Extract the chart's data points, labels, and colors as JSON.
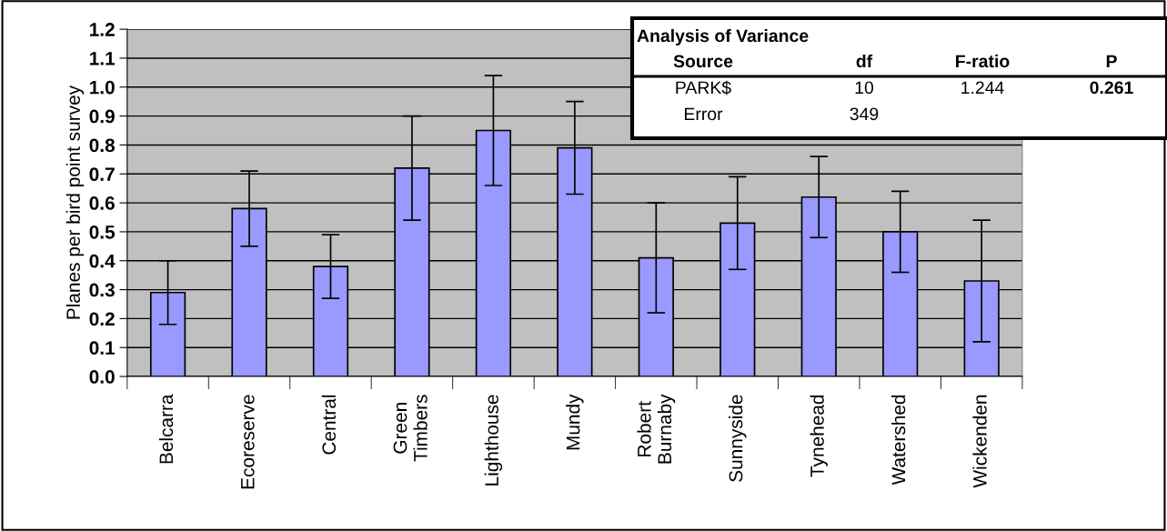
{
  "chart_data": {
    "type": "bar",
    "ylabel": "Planes per bird point survey",
    "categories": [
      "Belcarra",
      "Ecoreserve",
      "Central",
      "Green\nTimbers",
      "Lighthouse",
      "Mundy",
      "Robert\nBurnaby",
      "Sunnyside",
      "Tynehead",
      "Watershed",
      "Wickenden"
    ],
    "values": [
      0.29,
      0.58,
      0.38,
      0.72,
      0.85,
      0.79,
      0.41,
      0.53,
      0.62,
      0.5,
      0.33
    ],
    "errors": [
      0.11,
      0.13,
      0.11,
      0.18,
      0.19,
      0.16,
      0.19,
      0.16,
      0.14,
      0.14,
      0.21
    ],
    "color": "#9999ff",
    "ylim": [
      0,
      1.2
    ],
    "yticks": [
      {
        "value": 0,
        "label": "0.0"
      },
      0.1,
      0.2,
      0.3,
      0.4,
      0.5,
      0.6,
      0.7,
      0.8,
      0.9,
      {
        "value": 1,
        "label": "1.0"
      },
      1.1,
      1.2
    ],
    "grid": "y",
    "legend": false,
    "annotations": [
      "Analysis of Variance",
      "Source",
      "df",
      "F-ratio",
      "P",
      "PARK$",
      "10",
      "1.244",
      "0.261",
      "Error",
      "349"
    ]
  }
}
